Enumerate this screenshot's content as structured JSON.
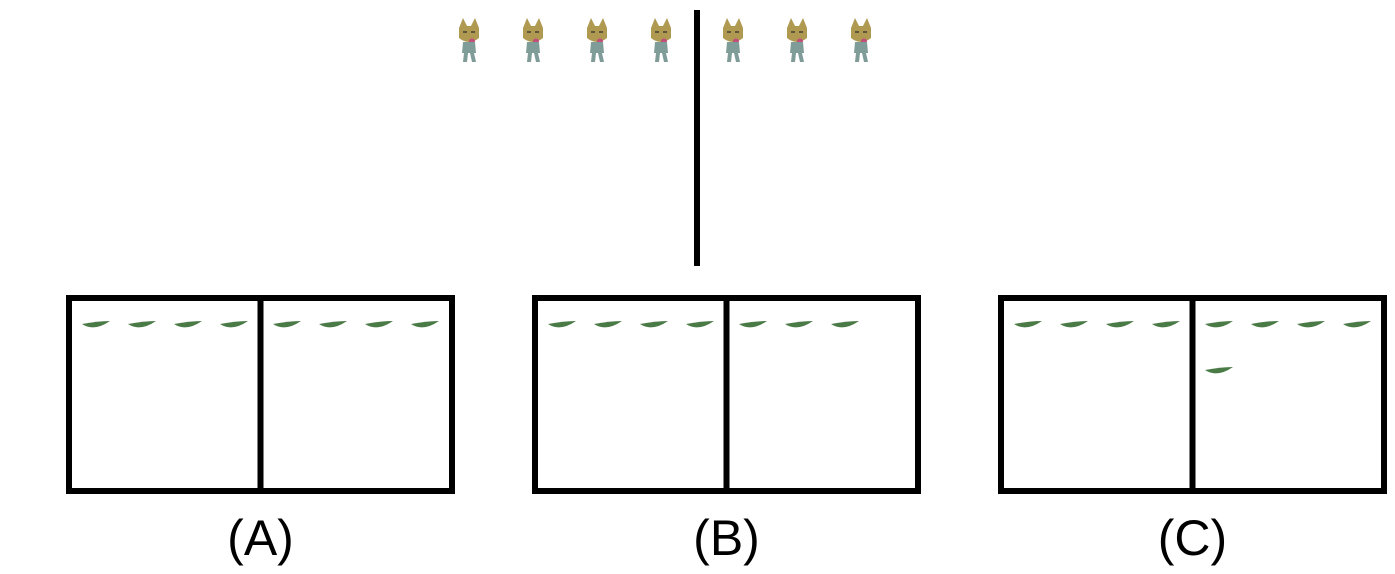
{
  "top": {
    "left_cat_count": 4,
    "right_cat_count": 3,
    "cat_icon": "cat-figure-icon"
  },
  "options": [
    {
      "label": "(A)",
      "left_leaf_count": 4,
      "right_leaf_top": 4,
      "right_leaf_extra": 0
    },
    {
      "label": "(B)",
      "left_leaf_count": 4,
      "right_leaf_top": 3,
      "right_leaf_extra": 0
    },
    {
      "label": "(C)",
      "left_leaf_count": 4,
      "right_leaf_top": 4,
      "right_leaf_extra": 1
    }
  ],
  "colors": {
    "line": "#000000",
    "leaf": "#4a7a45",
    "cat_head": "#b09a52",
    "cat_body": "#7f9c98",
    "cat_tongue": "#c0507a"
  },
  "leaf_icon": "leaf-icon"
}
